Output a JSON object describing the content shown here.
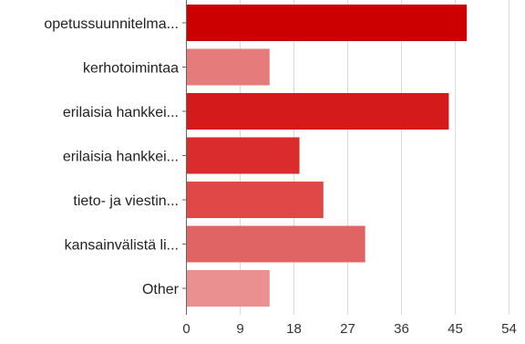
{
  "chart_data": {
    "type": "bar",
    "orientation": "horizontal",
    "categories": [
      "opetussuunnitelma...",
      "kerhotoimintaa",
      "erilaisia hankkei...",
      "erilaisia hankkei...",
      "tieto- ja viestin...",
      "kansainvälistä li...",
      "Other"
    ],
    "values": [
      47,
      14,
      44,
      19,
      23,
      30,
      14
    ],
    "colors": [
      "#cc0000",
      "#e57b7b",
      "#d41a1a",
      "#da2c2c",
      "#e04848",
      "#e06464",
      "#eb9090"
    ],
    "xticks": [
      "0",
      "9",
      "18",
      "27",
      "36",
      "45",
      "54"
    ],
    "xlim": [
      0,
      54
    ],
    "grid": true,
    "title": "",
    "xlabel": "",
    "ylabel": ""
  }
}
